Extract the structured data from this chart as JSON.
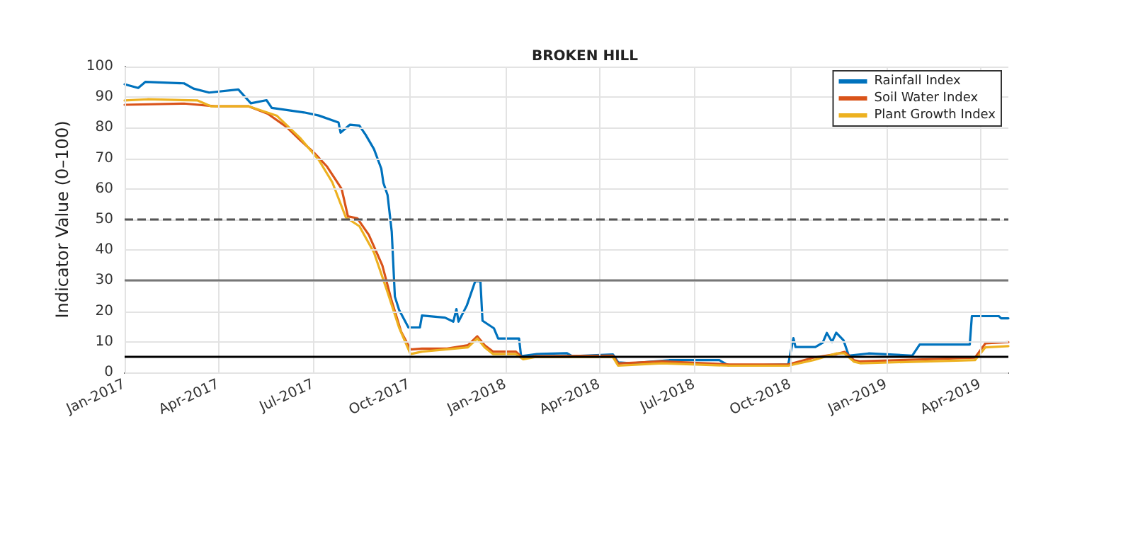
{
  "chart_data": {
    "type": "line",
    "title": "BROKEN HILL",
    "ylabel": "Indicator Value (0–100)",
    "xlim": [
      "2017-01-01",
      "2019-04-28"
    ],
    "ylim": [
      0,
      100
    ],
    "xticks": [
      {
        "value": "2017-01-01",
        "label": "Jan-2017"
      },
      {
        "value": "2017-04-01",
        "label": "Apr-2017"
      },
      {
        "value": "2017-07-01",
        "label": "Jul-2017"
      },
      {
        "value": "2017-10-01",
        "label": "Oct-2017"
      },
      {
        "value": "2018-01-01",
        "label": "Jan-2018"
      },
      {
        "value": "2018-04-01",
        "label": "Apr-2018"
      },
      {
        "value": "2018-07-01",
        "label": "Jul-2018"
      },
      {
        "value": "2018-10-01",
        "label": "Oct-2018"
      },
      {
        "value": "2019-01-01",
        "label": "Jan-2019"
      },
      {
        "value": "2019-04-01",
        "label": "Apr-2019"
      }
    ],
    "yticks": [
      0,
      10,
      20,
      30,
      40,
      50,
      60,
      70,
      80,
      90,
      100
    ],
    "grid": true,
    "legend": "top right",
    "marker": "none",
    "line_style": "solid",
    "ref_lines": [
      {
        "axis": "y",
        "value": 50,
        "label": null,
        "color": "#555555",
        "line_style": "dashed"
      },
      {
        "axis": "y",
        "value": 30,
        "label": null,
        "color": "#777777",
        "line_style": "solid"
      },
      {
        "axis": "y",
        "value": 5,
        "label": null,
        "color": "#000000",
        "line_style": "solid"
      }
    ],
    "series": [
      {
        "name": "Rainfall Index",
        "color": "#0072bd",
        "x": [
          "2017-01-01",
          "2017-01-14",
          "2017-01-21",
          "2017-02-27",
          "2017-03-08",
          "2017-03-23",
          "2017-04-20",
          "2017-05-02",
          "2017-05-17",
          "2017-05-22",
          "2017-06-22",
          "2017-07-06",
          "2017-07-25",
          "2017-07-27",
          "2017-08-05",
          "2017-08-14",
          "2017-08-20",
          "2017-08-28",
          "2017-09-04",
          "2017-09-06",
          "2017-09-10",
          "2017-09-14",
          "2017-09-17",
          "2017-09-21",
          "2017-09-30",
          "2017-10-11",
          "2017-10-13",
          "2017-11-04",
          "2017-11-12",
          "2017-11-15",
          "2017-11-17",
          "2017-11-25",
          "2017-12-03",
          "2017-12-08",
          "2017-12-10",
          "2017-12-21",
          "2017-12-25",
          "2018-01-14",
          "2018-01-16",
          "2018-01-31",
          "2018-03-01",
          "2018-03-06",
          "2018-04-14",
          "2018-04-19",
          "2018-05-02",
          "2018-06-07",
          "2018-07-25",
          "2018-08-03",
          "2018-09-29",
          "2018-10-04",
          "2018-10-06",
          "2018-10-25",
          "2018-11-01",
          "2018-11-05",
          "2018-11-10",
          "2018-11-14",
          "2018-11-21",
          "2018-11-26",
          "2018-12-15",
          "2019-01-26",
          "2019-02-02",
          "2019-03-22",
          "2019-03-24",
          "2019-04-19",
          "2019-04-21",
          "2019-04-28"
        ],
        "values": [
          94.2,
          93,
          95,
          94.5,
          92.8,
          91.5,
          92.5,
          88,
          89,
          86.5,
          85,
          84,
          81.7,
          78.4,
          81,
          80.7,
          77.7,
          73,
          66.6,
          62,
          58,
          46,
          24.8,
          20.5,
          14.7,
          14.7,
          18.6,
          17.9,
          16.6,
          20.7,
          16.6,
          21.9,
          29.8,
          29.8,
          16.9,
          14.4,
          11.1,
          11.1,
          5.3,
          6,
          6.3,
          5.3,
          5.9,
          3.3,
          3,
          4,
          4,
          2.2,
          2.6,
          11.2,
          8.3,
          8.3,
          9.7,
          12.9,
          10,
          13,
          10.5,
          5.5,
          6.2,
          5.5,
          9.1,
          9.1,
          18.4,
          18.4,
          17.7,
          17.7
        ]
      },
      {
        "name": "Soil Water Index",
        "color": "#d95319",
        "x": [
          "2017-01-01",
          "2017-02-27",
          "2017-03-29",
          "2017-04-30",
          "2017-05-18",
          "2017-06-05",
          "2017-06-18",
          "2017-07-01",
          "2017-07-14",
          "2017-07-28",
          "2017-08-03",
          "2017-08-12",
          "2017-08-23",
          "2017-09-05",
          "2017-09-14",
          "2017-09-23",
          "2017-10-02",
          "2017-10-13",
          "2017-11-06",
          "2017-11-26",
          "2017-12-05",
          "2017-12-12",
          "2017-12-20",
          "2018-01-11",
          "2018-01-18",
          "2018-01-29",
          "2018-04-14",
          "2018-04-19",
          "2018-05-31",
          "2018-08-04",
          "2018-09-29",
          "2018-10-23",
          "2018-11-14",
          "2018-11-22",
          "2018-12-01",
          "2018-12-07",
          "2019-03-27",
          "2019-04-06",
          "2019-04-28"
        ],
        "values": [
          87.5,
          87.9,
          87,
          87,
          84.6,
          80.3,
          76,
          72,
          67.3,
          60,
          51,
          50.4,
          45,
          35,
          23.3,
          13.3,
          7.5,
          7.8,
          7.8,
          8.9,
          11.8,
          8.9,
          6.8,
          6.8,
          4.6,
          5.3,
          5.5,
          2.9,
          3.6,
          2.6,
          2.6,
          4.8,
          6,
          6.7,
          4,
          3.6,
          4.8,
          9.5,
          9.9
        ]
      },
      {
        "name": "Plant Growth Index",
        "color": "#edb120",
        "x": [
          "2017-01-01",
          "2017-01-23",
          "2017-03-12",
          "2017-03-25",
          "2017-04-30",
          "2017-05-27",
          "2017-06-18",
          "2017-07-06",
          "2017-07-19",
          "2017-08-01",
          "2017-08-14",
          "2017-08-28",
          "2017-09-10",
          "2017-09-21",
          "2017-10-02",
          "2017-10-13",
          "2017-11-26",
          "2017-12-05",
          "2017-12-12",
          "2017-12-20",
          "2018-01-11",
          "2018-01-18",
          "2018-01-29",
          "2018-04-14",
          "2018-04-19",
          "2018-05-31",
          "2018-08-04",
          "2018-09-29",
          "2018-10-23",
          "2018-11-14",
          "2018-11-22",
          "2018-12-01",
          "2018-12-07",
          "2019-03-27",
          "2019-04-06",
          "2019-04-28"
        ],
        "values": [
          88.9,
          89.3,
          88.9,
          87,
          87,
          83.9,
          76.7,
          69.5,
          62.2,
          50.7,
          47.8,
          39.2,
          26.2,
          14.7,
          6,
          6.8,
          8.2,
          11.1,
          8.2,
          6,
          6,
          4.3,
          5,
          5,
          2.2,
          3,
          2.2,
          2.2,
          4,
          6.2,
          6.2,
          3.5,
          3,
          4,
          8.2,
          8.6
        ]
      }
    ]
  }
}
